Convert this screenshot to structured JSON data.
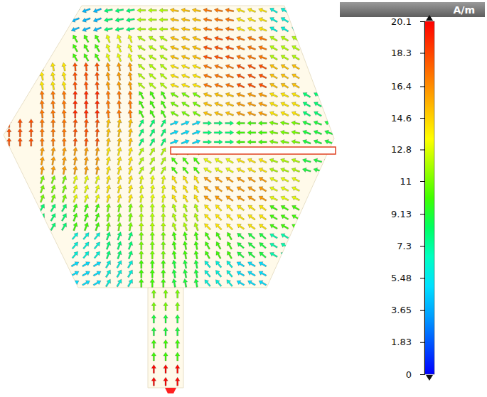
{
  "chart_data": {
    "type": "vector_field",
    "colorbar": {
      "title": "A/m",
      "range": [
        0,
        20.1
      ],
      "ticks": [
        20.1,
        18.3,
        16.4,
        14.6,
        12.8,
        11,
        9.13,
        7.3,
        5.48,
        3.65,
        1.83,
        0
      ],
      "colors": [
        "#0000ff",
        "#0050ff",
        "#00a0ff",
        "#00e0ff",
        "#00ffc0",
        "#00ff60",
        "#40ff00",
        "#a0ff00",
        "#ffff00",
        "#ffc000",
        "#ff8000",
        "#ff4000",
        "#ff0000"
      ]
    },
    "field": {
      "magnitude": [
        [
          null,
          null,
          4,
          8,
          12,
          15,
          17,
          14,
          6,
          null
        ],
        [
          null,
          null,
          10,
          13,
          12,
          15,
          18,
          17,
          12,
          null
        ],
        [
          null,
          14,
          18,
          16,
          12,
          14,
          17,
          18,
          15,
          null
        ],
        [
          null,
          17,
          19,
          17,
          10,
          11,
          15,
          16,
          14,
          8
        ],
        [
          18,
          17,
          18,
          15,
          8,
          5,
          8,
          10,
          11,
          9
        ],
        [
          null,
          16,
          16,
          14,
          12,
          10,
          13,
          14,
          12,
          9
        ],
        [
          null,
          11,
          13,
          14,
          13,
          14,
          16,
          16,
          13,
          null
        ],
        [
          null,
          8,
          10,
          11,
          12,
          12,
          14,
          14,
          10,
          null
        ],
        [
          null,
          null,
          6,
          8,
          11,
          10,
          10,
          9,
          7,
          null
        ],
        [
          null,
          null,
          5,
          6,
          10,
          9,
          6,
          5,
          null,
          null
        ]
      ],
      "angle": [
        [
          null,
          null,
          200,
          190,
          180,
          170,
          170,
          160,
          150,
          null
        ],
        [
          null,
          null,
          120,
          110,
          150,
          160,
          165,
          160,
          150,
          null
        ],
        [
          null,
          100,
          95,
          100,
          140,
          160,
          160,
          155,
          150,
          null
        ],
        [
          null,
          95,
          90,
          95,
          120,
          150,
          160,
          160,
          155,
          150
        ],
        [
          90,
          90,
          85,
          80,
          60,
          20,
          0,
          180,
          170,
          160
        ],
        [
          null,
          80,
          80,
          75,
          60,
          130,
          150,
          155,
          160,
          165
        ],
        [
          null,
          70,
          70,
          75,
          80,
          120,
          145,
          150,
          155,
          null
        ],
        [
          null,
          60,
          70,
          80,
          90,
          110,
          135,
          145,
          150,
          null
        ],
        [
          null,
          null,
          50,
          70,
          90,
          100,
          120,
          140,
          150,
          null
        ],
        [
          null,
          null,
          30,
          60,
          90,
          100,
          130,
          150,
          null,
          null
        ]
      ]
    },
    "feed": {
      "magnitude": [
        11,
        9,
        10,
        20
      ],
      "angle": [
        90,
        90,
        90,
        90
      ]
    }
  }
}
